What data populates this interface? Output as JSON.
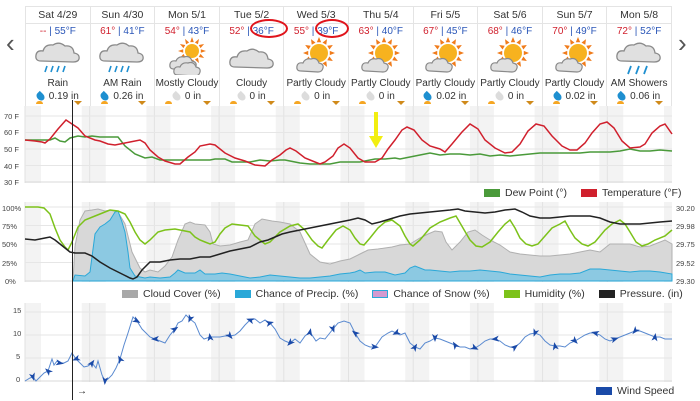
{
  "navigation": {
    "prev_label": "‹",
    "next_label": "›"
  },
  "days": [
    {
      "name": "Sat 4/29",
      "hi": "--",
      "lo": "55°F",
      "condition": "Rain",
      "icon": "rain-icon",
      "precip": "0.19 in",
      "wet": true
    },
    {
      "name": "Sun 4/30",
      "hi": "61°",
      "lo": "41°F",
      "condition": "AM Rain",
      "icon": "rain-icon",
      "precip": "0.26 in",
      "wet": true
    },
    {
      "name": "Mon 5/1",
      "hi": "54°",
      "lo": "43°F",
      "condition": "Mostly Cloudy",
      "icon": "mostly-cloudy-icon",
      "precip": "0 in",
      "wet": false
    },
    {
      "name": "Tue 5/2",
      "hi": "52°",
      "lo": "36°F",
      "condition": "Cloudy",
      "icon": "cloudy-icon",
      "precip": "0 in",
      "wet": false,
      "circled_low": true
    },
    {
      "name": "Wed 5/3",
      "hi": "55°",
      "lo": "39°F",
      "condition": "Partly Cloudy",
      "icon": "partly-cloudy-icon",
      "precip": "0 in",
      "wet": false,
      "circled_low": true
    },
    {
      "name": "Thu 5/4",
      "hi": "63°",
      "lo": "40°F",
      "condition": "Partly Cloudy",
      "icon": "partly-cloudy-icon",
      "precip": "0 in",
      "wet": false
    },
    {
      "name": "Fri 5/5",
      "hi": "67°",
      "lo": "45°F",
      "condition": "Partly Cloudy",
      "icon": "partly-cloudy-icon",
      "precip": "0.02 in",
      "wet": true
    },
    {
      "name": "Sat 5/6",
      "hi": "68°",
      "lo": "46°F",
      "condition": "Partly Cloudy",
      "icon": "partly-cloudy-icon",
      "precip": "0 in",
      "wet": false
    },
    {
      "name": "Sun 5/7",
      "hi": "70°",
      "lo": "49°F",
      "condition": "Partly Cloudy",
      "icon": "partly-cloudy-icon",
      "precip": "0.02 in",
      "wet": true
    },
    {
      "name": "Mon 5/8",
      "hi": "72°",
      "lo": "52°F",
      "condition": "AM Showers",
      "icon": "showers-icon",
      "precip": "0.06 in",
      "wet": true
    }
  ],
  "colors": {
    "temperature": "#d0202d",
    "dew_point": "#4a9a3a",
    "cloud_cover": "#aaaaaa",
    "precip": "#2aa8d8",
    "snow": "#d49ad0",
    "humidity": "#7cc21a",
    "pressure": "#222222",
    "wind": "#1a4aa8",
    "annotation_circle": "#e0141b",
    "annotation_arrow": "#f5f50a"
  },
  "legends": {
    "temp": [
      {
        "label": "Dew Point (°)",
        "color": "#4a9a3a"
      },
      {
        "label": "Temperature (°F)",
        "color": "#d0202d"
      }
    ],
    "cloud": [
      {
        "label": "Cloud Cover (%)",
        "color": "#a8a8a8"
      },
      {
        "label": "Chance of Precip. (%)",
        "color": "#2aa8d8"
      },
      {
        "label": "Chance of Snow (%)",
        "color": "#d49ad0"
      },
      {
        "label": "Humidity (%)",
        "color": "#7cc21a"
      },
      {
        "label": "Pressure. (in)",
        "color": "#222222"
      }
    ],
    "wind": [
      {
        "label": "Wind Speed",
        "color": "#1a4aa8"
      }
    ]
  },
  "chart_data": [
    {
      "type": "line",
      "title": "Temperature and Dew Point",
      "ylabel": "",
      "yticks": [
        "70 F",
        "60 F",
        "50 F",
        "40 F",
        "30 F"
      ],
      "ylim": [
        30,
        75
      ],
      "x": [
        "Sat 4/29",
        "Sun 4/30",
        "Mon 5/1",
        "Tue 5/2",
        "Wed 5/3",
        "Thu 5/4",
        "Fri 5/5",
        "Sat 5/6",
        "Sun 5/7",
        "Mon 5/8"
      ],
      "series": [
        {
          "name": "Temperature (°F)",
          "values_hourly_approx": [
            55,
            54,
            53,
            57,
            72,
            66,
            61,
            60,
            58,
            56,
            57,
            60,
            60,
            47,
            43,
            42,
            47,
            53,
            53,
            46,
            44,
            43,
            48,
            45,
            39,
            45,
            49,
            43,
            38,
            36,
            40,
            55,
            45,
            40,
            39,
            39,
            50,
            64,
            58,
            48,
            43,
            44,
            58,
            67,
            57,
            50,
            45,
            53,
            68,
            58,
            46,
            46,
            57,
            70,
            60,
            50,
            49,
            58,
            72,
            60
          ]
        },
        {
          "name": "Dew Point (°)",
          "values_hourly_approx": [
            54,
            54,
            54,
            56,
            52,
            56,
            57,
            56,
            56,
            56,
            55,
            50,
            40,
            36,
            35,
            35,
            35,
            35,
            35,
            36,
            35,
            35,
            35,
            36,
            34,
            32,
            32,
            33,
            33,
            33,
            34,
            36,
            36,
            38,
            38,
            40,
            42,
            42,
            44,
            44,
            43,
            44,
            44,
            45,
            44,
            44,
            44,
            45,
            44,
            44,
            45,
            46,
            47,
            47,
            48,
            48,
            50,
            49,
            49,
            48
          ]
        }
      ]
    },
    {
      "type": "area",
      "title": "Cloud Cover, Precipitation, Humidity, Pressure",
      "yticks_left": [
        "100%",
        "75%",
        "50%",
        "25%",
        "0%"
      ],
      "yticks_right": [
        "30.20",
        "29.98",
        "29.75",
        "29.52",
        "29.30"
      ],
      "ylim_left": [
        0,
        100
      ],
      "ylim_right": [
        29.3,
        30.2
      ],
      "series": [
        {
          "name": "Cloud Cover (%)",
          "axis": "left"
        },
        {
          "name": "Chance of Precip. (%)",
          "axis": "left"
        },
        {
          "name": "Chance of Snow (%)",
          "axis": "left"
        },
        {
          "name": "Humidity (%)",
          "axis": "left"
        },
        {
          "name": "Pressure. (in)",
          "axis": "right"
        }
      ]
    },
    {
      "type": "line",
      "title": "Wind Speed",
      "yticks": [
        "15",
        "10",
        "5",
        "0"
      ],
      "ylim": [
        0,
        16
      ],
      "series": [
        {
          "name": "Wind Speed",
          "values_hourly_approx": [
            0,
            1,
            0,
            2,
            3,
            8,
            5,
            5,
            4,
            5,
            9,
            6,
            3,
            5,
            0,
            1,
            5,
            9,
            15,
            12,
            9,
            10,
            7,
            12,
            15,
            15,
            10,
            10,
            11,
            11,
            13,
            15,
            15,
            12,
            9,
            9,
            12,
            15,
            15,
            15,
            10,
            8,
            7,
            8,
            10,
            12,
            7,
            4,
            2,
            2,
            3,
            5,
            3,
            5,
            4,
            4,
            4,
            7,
            5,
            3
          ]
        }
      ]
    }
  ]
}
